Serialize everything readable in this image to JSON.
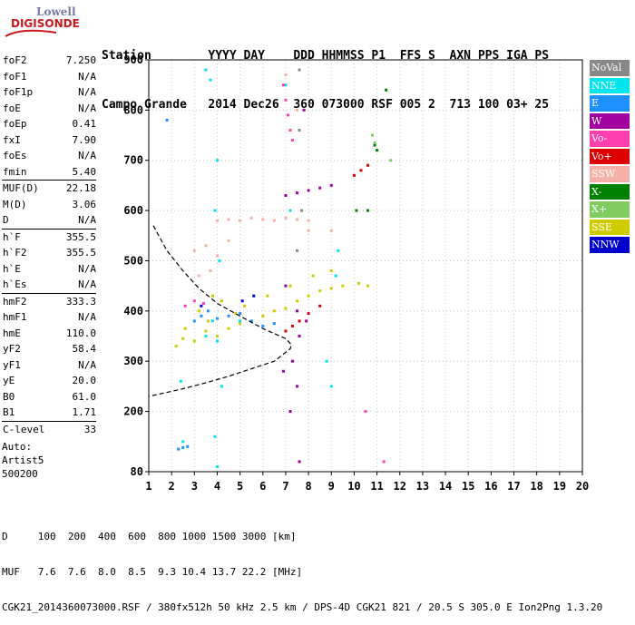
{
  "logo": {
    "line1": "Lowell",
    "line2": "DIGISONDE"
  },
  "header": {
    "row1": "Station        YYYY DAY    DDD HHMMSS P1  FFS S  AXN PPS IGA PS",
    "row2": "Campo Grande   2014 Dec26  360 073000 RSF 005 2  713 100 03+ 25"
  },
  "params": [
    {
      "label": "foF2",
      "value": "7.250"
    },
    {
      "label": "foF1",
      "value": "N/A"
    },
    {
      "label": "foF1p",
      "value": "N/A"
    },
    {
      "label": "foE",
      "value": "N/A"
    },
    {
      "label": "foEp",
      "value": "0.41"
    },
    {
      "label": "fxI",
      "value": "7.90"
    },
    {
      "label": "foEs",
      "value": "N/A"
    },
    {
      "label": "fmin",
      "value": "5.40"
    },
    {
      "label": "MUF(D)",
      "value": "22.18",
      "sep": true
    },
    {
      "label": "M(D)",
      "value": "3.06"
    },
    {
      "label": "D",
      "value": "N/A"
    },
    {
      "label": "h`F",
      "value": "355.5",
      "sep": true
    },
    {
      "label": "h`F2",
      "value": "355.5"
    },
    {
      "label": "h`E",
      "value": "N/A"
    },
    {
      "label": "h`Es",
      "value": "N/A"
    },
    {
      "label": "hmF2",
      "value": "333.3",
      "sep": true
    },
    {
      "label": "hmF1",
      "value": "N/A"
    },
    {
      "label": "hmE",
      "value": "110.0"
    },
    {
      "label": "yF2",
      "value": "58.4"
    },
    {
      "label": "yF1",
      "value": "N/A"
    },
    {
      "label": "yE",
      "value": "20.0"
    },
    {
      "label": "B0",
      "value": "61.0"
    },
    {
      "label": "B1",
      "value": "1.71"
    },
    {
      "label": "C-level",
      "value": "33",
      "sep": true
    }
  ],
  "auto": [
    "Auto:",
    "Artist5",
    "500200"
  ],
  "legend": [
    {
      "label": "NoVal",
      "color": "#888888"
    },
    {
      "label": "NNE",
      "color": "#00e5ee"
    },
    {
      "label": "E",
      "color": "#1e90ff"
    },
    {
      "label": "W",
      "color": "#a000a0"
    },
    {
      "label": "Vo-",
      "color": "#ff3eb0"
    },
    {
      "label": "Vo+",
      "color": "#dd0000"
    },
    {
      "label": "SSW",
      "color": "#f5b0a8"
    },
    {
      "label": "X-",
      "color": "#008000"
    },
    {
      "label": "X+",
      "color": "#80cc60"
    },
    {
      "label": "SSE",
      "color": "#cccc00"
    },
    {
      "label": "NNW",
      "color": "#0000cc"
    }
  ],
  "footer": {
    "line1": "D     100  200  400  600  800 1000 1500 3000 [km]",
    "line2": "MUF   7.6  7.6  8.0  8.5  9.3 10.4 13.7 22.2 [MHz]",
    "line3": "CGK21_2014360073000.RSF / 380fx512h 50 kHz 2.5 km / DPS-4D CGK21 821 / 20.5 S 305.0 E Ion2Png 1.3.20"
  },
  "chart_data": {
    "type": "scatter",
    "title": "",
    "xlabel": "",
    "ylabel": "",
    "xlim": [
      1,
      20
    ],
    "ylim": [
      80,
      900
    ],
    "x_ticks": [
      1,
      2,
      3,
      4,
      5,
      6,
      7,
      8,
      9,
      10,
      11,
      12,
      13,
      14,
      15,
      16,
      17,
      18,
      19,
      20
    ],
    "y_ticks": [
      80,
      200,
      300,
      400,
      500,
      600,
      700,
      800,
      900
    ],
    "grid": true,
    "series": [
      {
        "name": "SSE",
        "color": "#cccc00",
        "points": [
          [
            2.2,
            330
          ],
          [
            2.5,
            345
          ],
          [
            3.0,
            340
          ],
          [
            3.5,
            360
          ],
          [
            4.0,
            350
          ],
          [
            4.5,
            365
          ],
          [
            5.0,
            375
          ],
          [
            5.5,
            380
          ],
          [
            6.0,
            390
          ],
          [
            6.5,
            400
          ],
          [
            7.0,
            405
          ],
          [
            7.5,
            420
          ],
          [
            8.0,
            430
          ],
          [
            8.5,
            440
          ],
          [
            9.0,
            445
          ],
          [
            9.5,
            450
          ],
          [
            10.2,
            455
          ],
          [
            10.6,
            450
          ],
          [
            3.2,
            400
          ],
          [
            3.8,
            430
          ],
          [
            4.2,
            420
          ],
          [
            5.2,
            410
          ],
          [
            6.2,
            430
          ],
          [
            7.2,
            450
          ],
          [
            8.2,
            470
          ],
          [
            9.0,
            480
          ],
          [
            2.6,
            365
          ],
          [
            3.6,
            380
          ],
          [
            4.8,
            395
          ]
        ]
      },
      {
        "name": "NNE",
        "color": "#00e5ee",
        "points": [
          [
            3.5,
            880
          ],
          [
            3.7,
            860
          ],
          [
            4.0,
            700
          ],
          [
            3.9,
            600
          ],
          [
            4.1,
            500
          ],
          [
            3.8,
            380
          ],
          [
            4.0,
            340
          ],
          [
            4.2,
            250
          ],
          [
            3.9,
            150
          ],
          [
            4.0,
            90
          ],
          [
            7.0,
            850
          ],
          [
            7.2,
            600
          ],
          [
            7.0,
            450
          ],
          [
            9.2,
            470
          ],
          [
            9.3,
            520
          ],
          [
            8.8,
            300
          ],
          [
            9.0,
            250
          ],
          [
            2.4,
            260
          ],
          [
            2.5,
            140
          ],
          [
            3.5,
            350
          ],
          [
            5.0,
            380
          ]
        ]
      },
      {
        "name": "E",
        "color": "#1e90ff",
        "points": [
          [
            2.3,
            125
          ],
          [
            2.5,
            128
          ],
          [
            2.7,
            130
          ],
          [
            3.0,
            380
          ],
          [
            3.3,
            390
          ],
          [
            3.6,
            400
          ],
          [
            4.0,
            385
          ],
          [
            4.5,
            390
          ],
          [
            5.0,
            395
          ],
          [
            5.5,
            380
          ],
          [
            6.0,
            370
          ],
          [
            6.5,
            375
          ],
          [
            1.8,
            780
          ]
        ]
      },
      {
        "name": "W",
        "color": "#a000a0",
        "points": [
          [
            7.0,
            630
          ],
          [
            7.5,
            635
          ],
          [
            8.0,
            640
          ],
          [
            8.5,
            645
          ],
          [
            9.0,
            650
          ],
          [
            7.5,
            400
          ],
          [
            7.6,
            350
          ],
          [
            7.3,
            300
          ],
          [
            7.5,
            250
          ],
          [
            6.9,
            280
          ],
          [
            7.2,
            200
          ],
          [
            7.6,
            100
          ],
          [
            7.8,
            800
          ],
          [
            7.0,
            450
          ],
          [
            7.9,
            380
          ]
        ]
      },
      {
        "name": "Vo-",
        "color": "#ff3eb0",
        "points": [
          [
            6.9,
            850
          ],
          [
            7.0,
            820
          ],
          [
            7.1,
            790
          ],
          [
            7.2,
            760
          ],
          [
            7.3,
            740
          ],
          [
            2.6,
            410
          ],
          [
            3.0,
            420
          ],
          [
            3.4,
            415
          ],
          [
            10.5,
            200
          ],
          [
            11.3,
            100
          ]
        ]
      },
      {
        "name": "Vo+",
        "color": "#dd0000",
        "points": [
          [
            10.0,
            670
          ],
          [
            10.3,
            680
          ],
          [
            10.6,
            690
          ],
          [
            7.0,
            360
          ],
          [
            7.3,
            370
          ],
          [
            7.6,
            380
          ],
          [
            8.0,
            395
          ],
          [
            8.5,
            410
          ]
        ]
      },
      {
        "name": "SSW",
        "color": "#f5b0a8",
        "points": [
          [
            4.0,
            580
          ],
          [
            4.5,
            582
          ],
          [
            5.0,
            580
          ],
          [
            5.5,
            585
          ],
          [
            6.0,
            582
          ],
          [
            6.5,
            580
          ],
          [
            7.0,
            585
          ],
          [
            7.5,
            582
          ],
          [
            8.0,
            580
          ],
          [
            3.0,
            520
          ],
          [
            3.5,
            530
          ],
          [
            4.0,
            510
          ],
          [
            4.5,
            540
          ],
          [
            3.2,
            470
          ],
          [
            3.7,
            480
          ],
          [
            7.0,
            870
          ],
          [
            7.5,
            800
          ],
          [
            8.0,
            560
          ],
          [
            9.0,
            560
          ]
        ]
      },
      {
        "name": "X-",
        "color": "#008000",
        "points": [
          [
            10.9,
            730
          ],
          [
            11.0,
            720
          ],
          [
            11.4,
            840
          ],
          [
            10.1,
            600
          ],
          [
            10.6,
            600
          ]
        ]
      },
      {
        "name": "X+",
        "color": "#80cc60",
        "points": [
          [
            10.8,
            750
          ],
          [
            10.9,
            735
          ],
          [
            11.6,
            700
          ]
        ]
      },
      {
        "name": "NoVal",
        "color": "#888888",
        "points": [
          [
            7.6,
            880
          ],
          [
            7.6,
            760
          ],
          [
            7.7,
            600
          ],
          [
            7.5,
            520
          ]
        ]
      },
      {
        "name": "NNW",
        "color": "#0000cc",
        "points": [
          [
            5.1,
            420
          ],
          [
            5.6,
            430
          ],
          [
            3.3,
            410
          ]
        ]
      }
    ],
    "profile_curve": [
      [
        1.2,
        570
      ],
      [
        1.8,
        520
      ],
      [
        2.5,
        480
      ],
      [
        3.2,
        445
      ],
      [
        4.0,
        415
      ],
      [
        5.0,
        390
      ],
      [
        6.0,
        365
      ],
      [
        6.5,
        355
      ],
      [
        7.0,
        345
      ],
      [
        7.25,
        333
      ],
      [
        7.2,
        325
      ],
      [
        6.5,
        300
      ],
      [
        5.5,
        285
      ],
      [
        4.5,
        270
      ],
      [
        3.5,
        257
      ],
      [
        2.5,
        245
      ],
      [
        1.5,
        235
      ],
      [
        1.0,
        230
      ]
    ]
  }
}
